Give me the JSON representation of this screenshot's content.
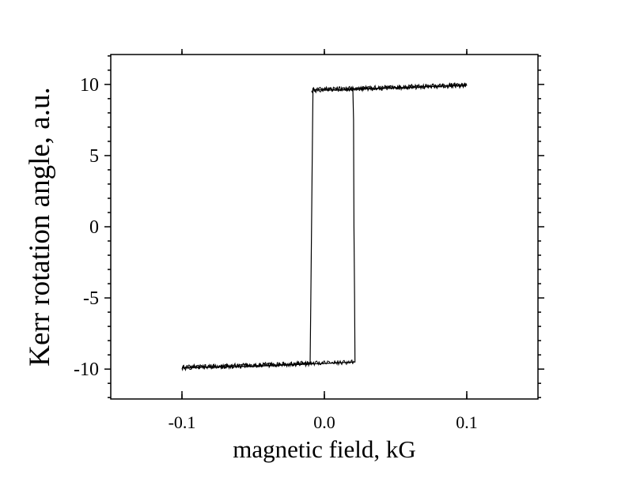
{
  "chart_data": {
    "type": "line",
    "title": "",
    "xlabel": "magnetic field, kG",
    "ylabel": "Kerr rotation angle, a.u.",
    "xlim": [
      -0.15,
      0.15
    ],
    "ylim": [
      -12.1,
      12.1
    ],
    "grid": false,
    "x_ticks": [
      {
        "value": -0.1,
        "label": "-0.1"
      },
      {
        "value": 0.0,
        "label": "0.0"
      },
      {
        "value": 0.1,
        "label": "0.1"
      }
    ],
    "y_ticks": [
      {
        "value": 10,
        "label": "10"
      },
      {
        "value": 5,
        "label": "5"
      },
      {
        "value": 0,
        "label": "0"
      },
      {
        "value": -5,
        "label": "-5"
      },
      {
        "value": -10,
        "label": "-10"
      }
    ],
    "series": [
      {
        "x": [
          -0.1,
          -0.05,
          -0.01,
          -0.0095,
          -0.009,
          -0.0085,
          -0.008,
          0.0,
          0.01,
          0.02,
          0.05,
          0.1
        ],
        "y": [
          -9.9,
          -9.8,
          -9.6,
          -5.0,
          0.0,
          5.0,
          9.65,
          9.6,
          9.6,
          9.65,
          9.75,
          9.95
        ]
      },
      {
        "x": [
          0.1,
          0.05,
          0.02,
          0.0205,
          0.0208,
          0.0212,
          0.0215,
          0.01,
          0.0,
          -0.05,
          -0.1
        ],
        "y": [
          9.95,
          9.75,
          9.7,
          7.5,
          0.0,
          -5.0,
          -9.5,
          -9.55,
          -9.6,
          -9.8,
          -9.9
        ]
      }
    ],
    "line_color": "#000000"
  }
}
